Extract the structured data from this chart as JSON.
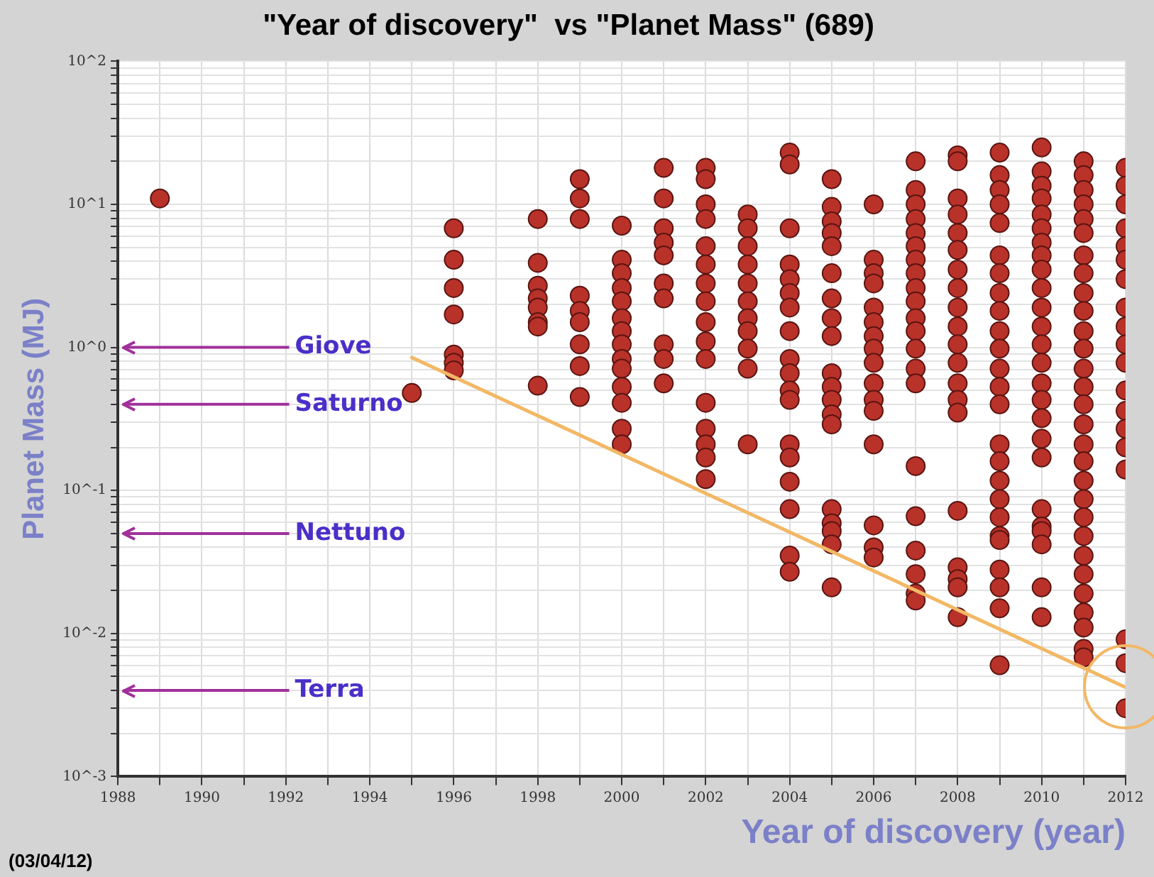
{
  "chart_data": {
    "type": "scatter",
    "title": "\"Year of discovery\"  vs \"Planet Mass\" (689)",
    "xlabel": "Year of discovery (year)",
    "ylabel": "Planet Mass (MJ)",
    "log": "y",
    "grid": true,
    "legend": false,
    "marker": "circle",
    "xlim": [
      1988,
      2012
    ],
    "xticks": [
      1988,
      {
        "value": 1989,
        "label": null
      },
      1990,
      {
        "value": 1991,
        "label": null
      },
      1992,
      {
        "value": 1993,
        "label": null
      },
      1994,
      {
        "value": 1995,
        "label": null
      },
      1996,
      {
        "value": 1997,
        "label": null
      },
      1998,
      {
        "value": 1999,
        "label": null
      },
      2000,
      {
        "value": 2001,
        "label": null
      },
      2002,
      {
        "value": 2003,
        "label": null
      },
      2004,
      {
        "value": 2005,
        "label": null
      },
      2006,
      {
        "value": 2007,
        "label": null
      },
      2008,
      {
        "value": 2009,
        "label": null
      },
      2010,
      {
        "value": 2011,
        "label": null
      },
      2012
    ],
    "ylim": [
      0.001,
      100
    ],
    "yticks": [
      {
        "value": 0.001,
        "label": "10^-3"
      },
      {
        "value": 0.002,
        "label": null
      },
      {
        "value": 0.003,
        "label": null
      },
      {
        "value": 0.004,
        "label": null
      },
      {
        "value": 0.005,
        "label": null
      },
      {
        "value": 0.006,
        "label": null
      },
      {
        "value": 0.007,
        "label": null
      },
      {
        "value": 0.008,
        "label": null
      },
      {
        "value": 0.009,
        "label": null
      },
      {
        "value": 0.01,
        "label": "10^-2"
      },
      {
        "value": 0.02,
        "label": null
      },
      {
        "value": 0.03,
        "label": null
      },
      {
        "value": 0.04,
        "label": null
      },
      {
        "value": 0.05,
        "label": null
      },
      {
        "value": 0.06,
        "label": null
      },
      {
        "value": 0.07,
        "label": null
      },
      {
        "value": 0.08,
        "label": null
      },
      {
        "value": 0.09,
        "label": null
      },
      {
        "value": 0.1,
        "label": "10^-1"
      },
      {
        "value": 0.2,
        "label": null
      },
      {
        "value": 0.3,
        "label": null
      },
      {
        "value": 0.4,
        "label": null
      },
      {
        "value": 0.5,
        "label": null
      },
      {
        "value": 0.6,
        "label": null
      },
      {
        "value": 0.7,
        "label": null
      },
      {
        "value": 0.8,
        "label": null
      },
      {
        "value": 0.9,
        "label": null
      },
      {
        "value": 1,
        "label": "10^0"
      },
      {
        "value": 2,
        "label": null
      },
      {
        "value": 3,
        "label": null
      },
      {
        "value": 4,
        "label": null
      },
      {
        "value": 5,
        "label": null
      },
      {
        "value": 6,
        "label": null
      },
      {
        "value": 7,
        "label": null
      },
      {
        "value": 8,
        "label": null
      },
      {
        "value": 9,
        "label": null
      },
      {
        "value": 10,
        "label": "10^1"
      },
      {
        "value": 20,
        "label": null
      },
      {
        "value": 30,
        "label": null
      },
      {
        "value": 40,
        "label": null
      },
      {
        "value": 50,
        "label": null
      },
      {
        "value": 60,
        "label": null
      },
      {
        "value": 70,
        "label": null
      },
      {
        "value": 80,
        "label": null
      },
      {
        "value": 90,
        "label": null
      },
      {
        "value": 100,
        "label": "10^2"
      }
    ],
    "ref_lines": [
      {
        "axis": "y",
        "value": 1,
        "label": "Giove",
        "color": "#a0309a"
      },
      {
        "axis": "y",
        "value": 0.4,
        "label": "Saturno",
        "color": "#a0309a"
      },
      {
        "axis": "y",
        "value": 0.05,
        "label": "Nettuno",
        "color": "#a0309a"
      },
      {
        "axis": "y",
        "value": 0.004,
        "label": "Terra",
        "color": "#a0309a"
      }
    ],
    "annotations": [
      "(03/04/12)"
    ],
    "series": [
      {
        "type": "scatter",
        "color": "#b8322a",
        "x": [
          1989,
          1995,
          1996,
          1996,
          1996,
          1996,
          1996,
          1996,
          1996,
          1998,
          1998,
          1998,
          1998,
          1998,
          1998,
          1998,
          1998,
          1999,
          1999,
          1999,
          1999,
          1999,
          1999,
          1999,
          1999,
          1999,
          2000,
          2000,
          2000,
          2000,
          2000,
          2000,
          2000,
          2000,
          2000,
          2000,
          2000,
          2000,
          2000,
          2000,
          2001,
          2001,
          2001,
          2001,
          2001,
          2001,
          2001,
          2001,
          2001,
          2001,
          2002,
          2002,
          2002,
          2002,
          2002,
          2002,
          2002,
          2002,
          2002,
          2002,
          2002,
          2002,
          2002,
          2002,
          2002,
          2002,
          2003,
          2003,
          2003,
          2003,
          2003,
          2003,
          2003,
          2003,
          2003,
          2003,
          2003,
          2004,
          2004,
          2004,
          2004,
          2004,
          2004,
          2004,
          2004,
          2004,
          2004,
          2004,
          2004,
          2004,
          2004,
          2004,
          2004,
          2004,
          2004,
          2005,
          2005,
          2005,
          2005,
          2005,
          2005,
          2005,
          2005,
          2005,
          2005,
          2005,
          2005,
          2005,
          2005,
          2005,
          2005,
          2005,
          2005,
          2005,
          2006,
          2006,
          2006,
          2006,
          2006,
          2006,
          2006,
          2006,
          2006,
          2006,
          2006,
          2006,
          2006,
          2006,
          2006,
          2006,
          2007,
          2007,
          2007,
          2007,
          2007,
          2007,
          2007,
          2007,
          2007,
          2007,
          2007,
          2007,
          2007,
          2007,
          2007,
          2007,
          2007,
          2007,
          2007,
          2007,
          2007,
          2008,
          2008,
          2008,
          2008,
          2008,
          2008,
          2008,
          2008,
          2008,
          2008,
          2008,
          2008,
          2008,
          2008,
          2008,
          2008,
          2008,
          2008,
          2008,
          2008,
          2009,
          2009,
          2009,
          2009,
          2009,
          2009,
          2009,
          2009,
          2009,
          2009,
          2009,
          2009,
          2009,
          2009,
          2009,
          2009,
          2009,
          2009,
          2009,
          2009,
          2009,
          2009,
          2009,
          2009,
          2009,
          2010,
          2010,
          2010,
          2010,
          2010,
          2010,
          2010,
          2010,
          2010,
          2010,
          2010,
          2010,
          2010,
          2010,
          2010,
          2010,
          2010,
          2010,
          2010,
          2010,
          2010,
          2010,
          2010,
          2010,
          2010,
          2011,
          2011,
          2011,
          2011,
          2011,
          2011,
          2011,
          2011,
          2011,
          2011,
          2011,
          2011,
          2011,
          2011,
          2011,
          2011,
          2011,
          2011,
          2011,
          2011,
          2011,
          2011,
          2011,
          2011,
          2011,
          2011,
          2011,
          2011,
          2011,
          2012,
          2012,
          2012,
          2012,
          2012,
          2012,
          2012,
          2012,
          2012,
          2012,
          2012,
          2012,
          2012,
          2012,
          2012,
          2012,
          2012,
          2012,
          2012
        ],
        "values": [
          11,
          0.48,
          6.8,
          4.1,
          2.6,
          1.7,
          0.89,
          0.78,
          0.69,
          7.9,
          3.9,
          2.7,
          2.2,
          1.9,
          1.5,
          1.4,
          0.54,
          15,
          11,
          7.9,
          2.3,
          1.8,
          1.5,
          1.05,
          0.74,
          0.45,
          7.1,
          4.1,
          3.3,
          2.6,
          2.1,
          1.6,
          1.3,
          1.05,
          0.83,
          0.71,
          0.53,
          0.41,
          0.27,
          0.21,
          18,
          11,
          6.8,
          5.4,
          4.4,
          2.8,
          2.2,
          1.05,
          0.83,
          0.56,
          18,
          15,
          10,
          7.9,
          5.1,
          3.8,
          2.8,
          2.1,
          1.5,
          1.1,
          0.83,
          0.41,
          0.27,
          0.21,
          0.17,
          0.12,
          8.5,
          6.8,
          5.1,
          3.8,
          2.8,
          2.1,
          1.6,
          1.3,
          0.98,
          0.71,
          0.21,
          23,
          19,
          6.8,
          3.8,
          3.0,
          2.4,
          1.9,
          1.3,
          0.83,
          0.66,
          0.5,
          0.43,
          0.21,
          0.17,
          0.115,
          0.074,
          0.035,
          0.027,
          15,
          9.6,
          7.6,
          6.3,
          5.1,
          3.3,
          2.2,
          1.6,
          1.2,
          0.66,
          0.53,
          0.43,
          0.34,
          0.29,
          0.074,
          0.059,
          0.052,
          0.042,
          0.021,
          10,
          4.1,
          3.3,
          2.8,
          1.9,
          1.5,
          1.2,
          0.98,
          0.78,
          0.56,
          0.43,
          0.36,
          0.21,
          0.057,
          0.04,
          0.034,
          20,
          12.6,
          10,
          7.9,
          6.3,
          5.1,
          4.1,
          3.3,
          2.6,
          2.1,
          1.6,
          1.3,
          0.98,
          0.71,
          0.56,
          0.148,
          0.066,
          0.038,
          0.026,
          0.019,
          0.017,
          22,
          20,
          11,
          8.5,
          6.3,
          4.8,
          3.5,
          2.6,
          1.9,
          1.4,
          1.05,
          0.78,
          0.56,
          0.43,
          0.35,
          0.072,
          0.029,
          0.024,
          0.021,
          0.013,
          23,
          16,
          12.6,
          10,
          7.4,
          4.4,
          3.3,
          2.4,
          1.8,
          1.3,
          0.98,
          0.71,
          0.53,
          0.4,
          0.21,
          0.16,
          0.117,
          0.087,
          0.065,
          0.048,
          0.045,
          0.028,
          0.021,
          0.015,
          0.006,
          25,
          17,
          13.5,
          11,
          8.5,
          6.8,
          5.4,
          4.4,
          3.5,
          2.6,
          1.9,
          1.4,
          1.05,
          0.78,
          0.56,
          0.43,
          0.32,
          0.23,
          0.17,
          0.074,
          0.056,
          0.052,
          0.042,
          0.021,
          0.013,
          20,
          16,
          12.6,
          10,
          7.9,
          6.3,
          4.4,
          3.3,
          2.4,
          1.8,
          1.3,
          0.98,
          0.71,
          0.53,
          0.4,
          0.29,
          0.21,
          0.16,
          0.117,
          0.087,
          0.065,
          0.048,
          0.035,
          0.026,
          0.019,
          0.014,
          0.011,
          0.0078,
          0.0068,
          18,
          13.5,
          10,
          6.8,
          5.1,
          4.1,
          3.0,
          1.9,
          1.4,
          1.05,
          0.78,
          0.5,
          0.36,
          0.27,
          0.2,
          0.14,
          0.0091,
          0.0062,
          0.003
        ]
      },
      {
        "type": "line",
        "color": "#f2b866",
        "x": [
          1995,
          2012
        ],
        "values": [
          0.85,
          0.0042
        ]
      }
    ]
  }
}
